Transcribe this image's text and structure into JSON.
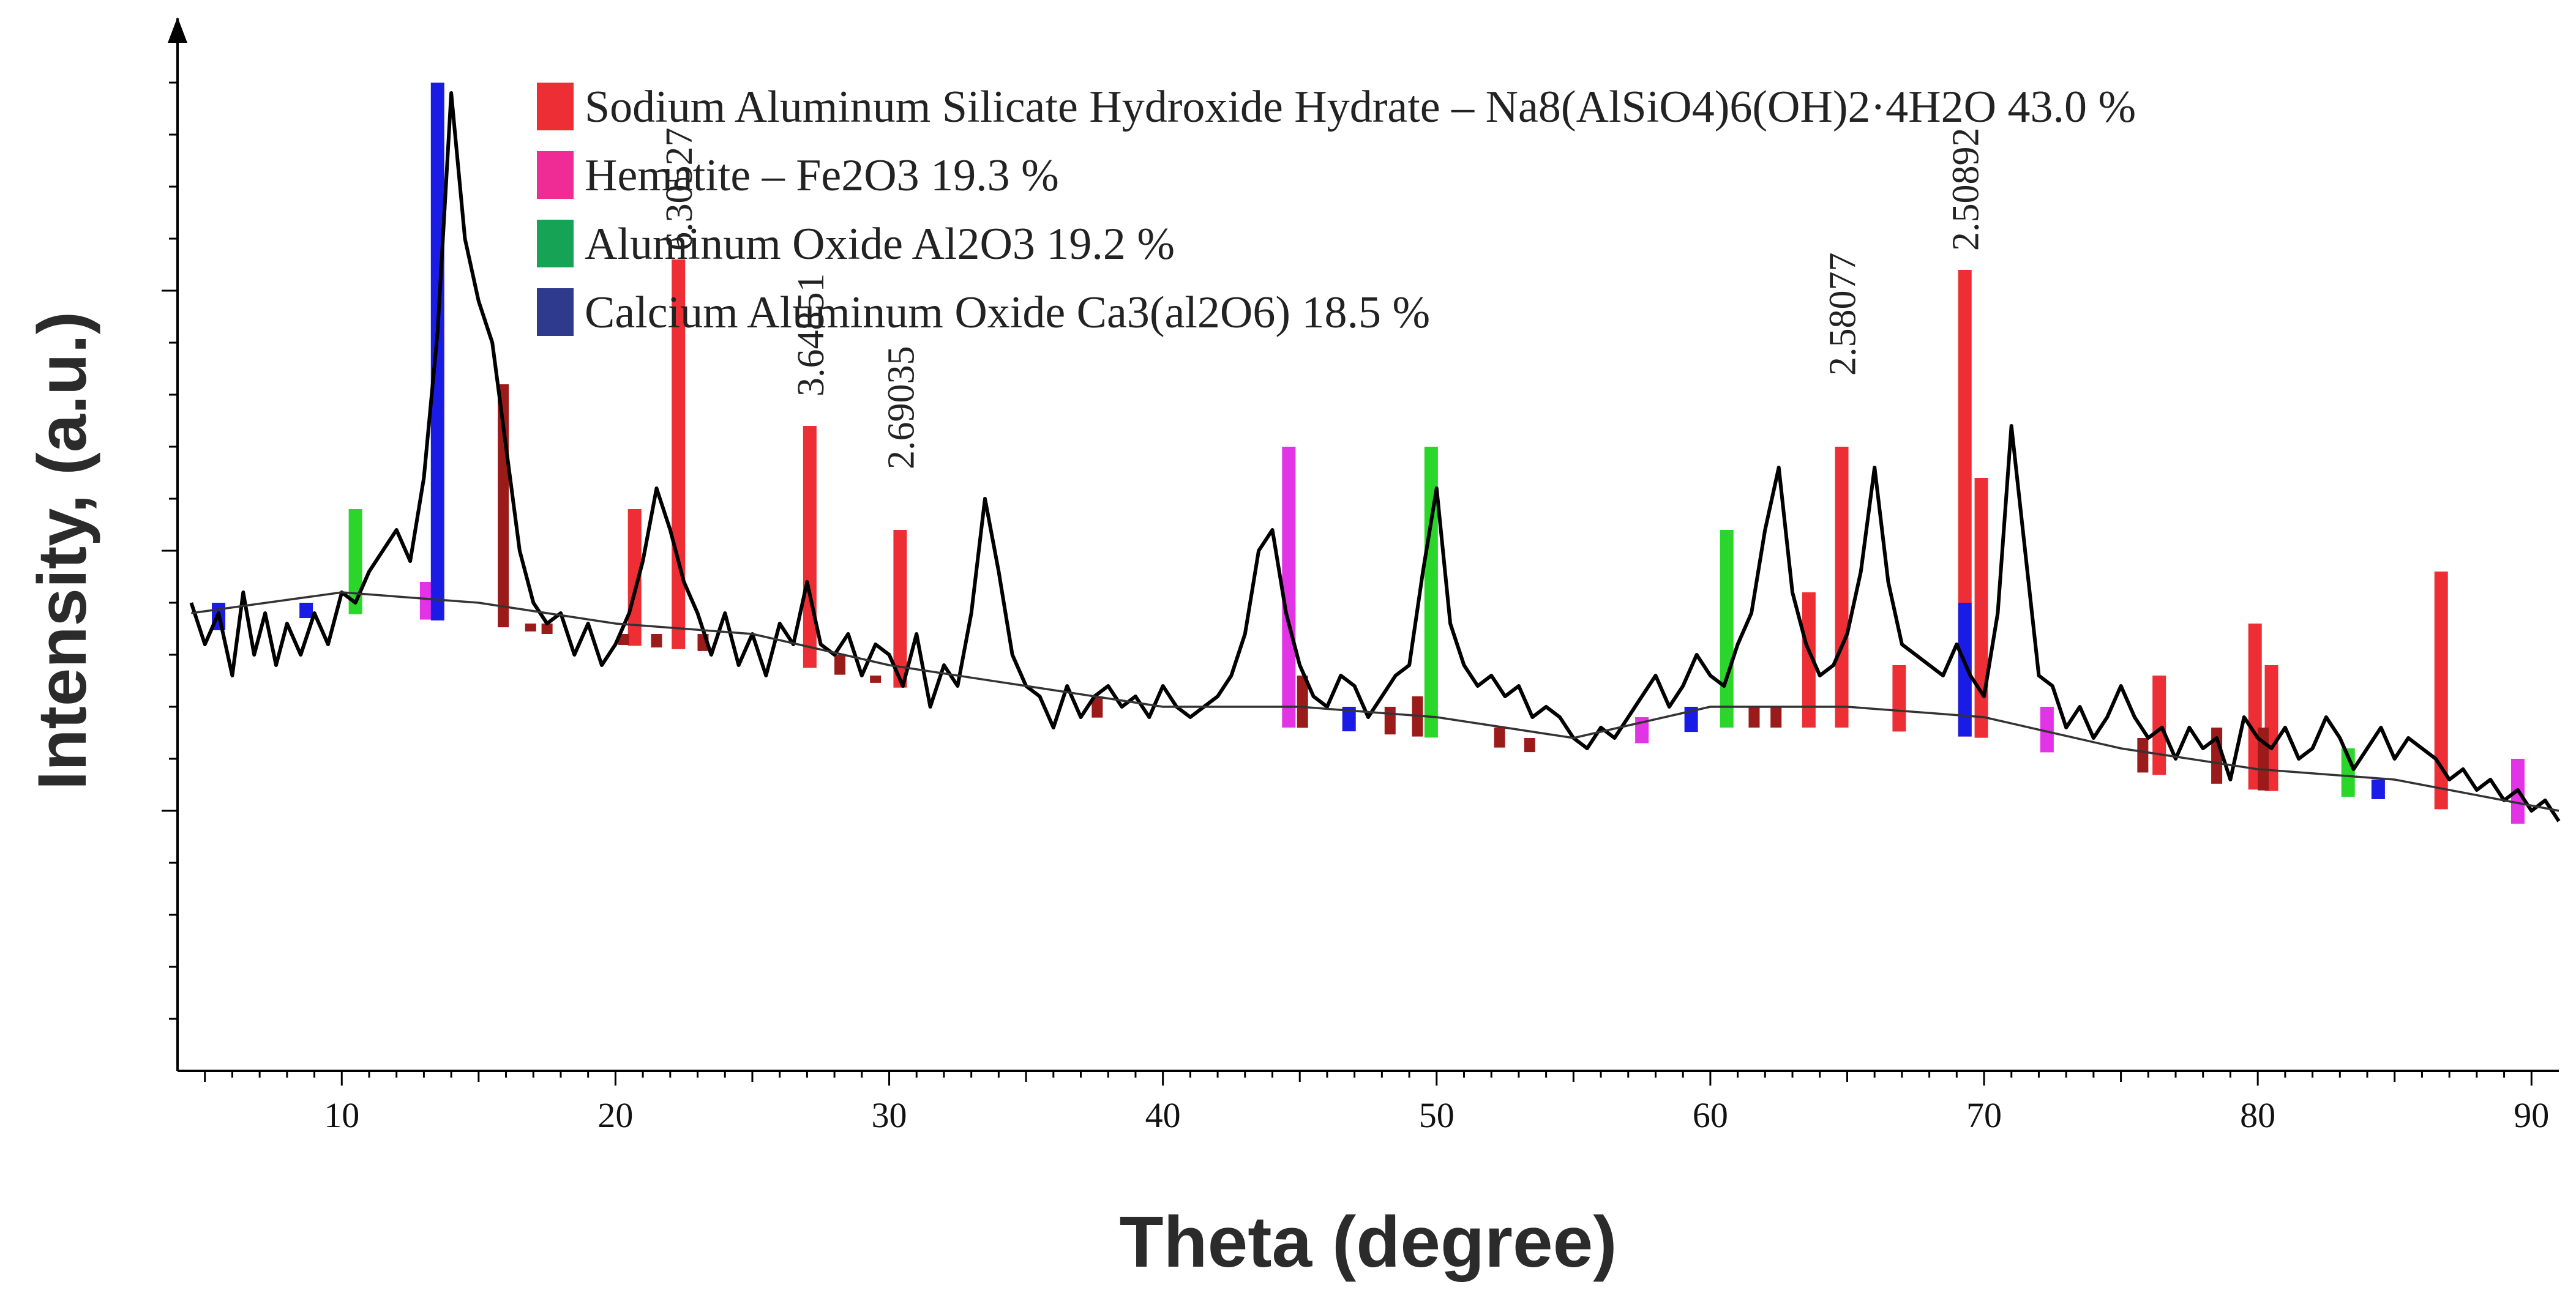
{
  "chart_data": {
    "type": "line",
    "title": "",
    "xlabel": "Theta (degree)",
    "ylabel": "Intensity, (a.u.)",
    "xlim": [
      4,
      91
    ],
    "ylim": [
      0,
      100
    ],
    "x_ticks": [
      10,
      20,
      30,
      40,
      50,
      60,
      70,
      80,
      90
    ],
    "legend_position": "top-right",
    "legend": [
      {
        "label": "Sodium Aluminum Silicate Hydroxide Hydrate – Na8(AlSiO4)6(OH)2·4H2O 43.0 %",
        "color": "#ed2f35"
      },
      {
        "label": "Hematite – Fe2O3 19.3 %",
        "color": "#ef2c95"
      },
      {
        "label": "Aluminum Oxide Al2O3 19.2 %",
        "color": "#17a356"
      },
      {
        "label": "Calcium Aluminum Oxide Ca3(al2O6) 18.5 %",
        "color": "#2e3a8c"
      }
    ],
    "peak_labels": [
      {
        "x": 22.3,
        "y": 78,
        "text": "6.30527"
      },
      {
        "x": 27.1,
        "y": 64,
        "text": "3.64851"
      },
      {
        "x": 30.4,
        "y": 57,
        "text": "2.69035"
      },
      {
        "x": 64.8,
        "y": 66,
        "text": "2.58077"
      },
      {
        "x": 69.3,
        "y": 78,
        "text": "2.50892"
      }
    ],
    "series": [
      {
        "name": "Diffraction pattern",
        "color": "#000000",
        "x": [
          4.5,
          5,
          5.5,
          6,
          6.4,
          6.8,
          7.2,
          7.6,
          8,
          8.5,
          9,
          9.5,
          10,
          10.5,
          11,
          11.5,
          12,
          12.5,
          13,
          13.5,
          14,
          14.5,
          15,
          15.5,
          16,
          16.5,
          17,
          17.5,
          18,
          18.5,
          19,
          19.5,
          20,
          20.5,
          21,
          21.5,
          22,
          22.5,
          23,
          23.5,
          24,
          24.5,
          25,
          25.5,
          26,
          26.5,
          27,
          27.5,
          28,
          28.5,
          29,
          29.5,
          30,
          30.5,
          31,
          31.5,
          32,
          32.5,
          33,
          33.5,
          34,
          34.5,
          35,
          35.5,
          36,
          36.5,
          37,
          37.5,
          38,
          38.5,
          39,
          39.5,
          40,
          40.5,
          41,
          41.5,
          42,
          42.5,
          43,
          43.5,
          44,
          44.5,
          45,
          45.5,
          46,
          46.5,
          47,
          47.5,
          48,
          48.5,
          49,
          49.5,
          50,
          50.5,
          51,
          51.5,
          52,
          52.5,
          53,
          53.5,
          54,
          54.5,
          55,
          55.5,
          56,
          56.5,
          57,
          57.5,
          58,
          58.5,
          59,
          59.5,
          60,
          60.5,
          61,
          61.5,
          62,
          62.5,
          63,
          63.5,
          64,
          64.5,
          65,
          65.5,
          66,
          66.5,
          67,
          67.5,
          68,
          68.5,
          69,
          69.5,
          70,
          70.5,
          71,
          71.5,
          72,
          72.5,
          73,
          73.5,
          74,
          74.5,
          75,
          75.5,
          76,
          76.5,
          77,
          77.5,
          78,
          78.5,
          79,
          79.5,
          80,
          80.5,
          81,
          81.5,
          82,
          82.5,
          83,
          83.5,
          84,
          84.5,
          85,
          85.5,
          86,
          86.5,
          87,
          87.5,
          88,
          88.5,
          89,
          89.5,
          90,
          90.5,
          91
        ],
        "y": [
          45,
          41,
          44,
          38,
          46,
          40,
          44,
          39,
          43,
          40,
          44,
          41,
          46,
          45,
          48,
          50,
          52,
          49,
          57,
          71,
          94,
          80,
          74,
          70,
          60,
          50,
          45,
          43,
          44,
          40,
          43,
          39,
          41,
          44,
          49,
          56,
          52,
          47,
          44,
          40,
          44,
          39,
          42,
          38,
          43,
          41,
          47,
          41,
          40,
          42,
          38,
          41,
          40,
          37,
          42,
          35,
          39,
          37,
          44,
          55,
          48,
          40,
          37,
          36,
          33,
          37,
          34,
          36,
          37,
          35,
          36,
          34,
          37,
          35,
          34,
          35,
          36,
          38,
          42,
          50,
          52,
          44,
          39,
          36,
          35,
          38,
          37,
          34,
          36,
          38,
          39,
          48,
          56,
          43,
          39,
          37,
          38,
          36,
          37,
          34,
          35,
          34,
          32,
          31,
          33,
          32,
          34,
          36,
          38,
          35,
          37,
          40,
          38,
          37,
          41,
          44,
          52,
          58,
          46,
          41,
          38,
          39,
          42,
          48,
          58,
          47,
          41,
          40,
          39,
          38,
          41,
          38,
          36,
          44,
          62,
          50,
          38,
          37,
          33,
          35,
          32,
          34,
          37,
          34,
          32,
          33,
          30,
          33,
          31,
          32,
          28,
          34,
          32,
          31,
          33,
          30,
          31,
          34,
          32,
          29,
          31,
          33,
          30,
          32,
          31,
          30,
          28,
          29,
          27,
          28,
          26,
          27,
          25,
          26,
          24
        ]
      },
      {
        "name": "Background",
        "color": "#333333",
        "x": [
          4.5,
          10,
          15,
          20,
          25,
          30,
          35,
          40,
          45,
          50,
          55,
          60,
          65,
          70,
          75,
          80,
          85,
          91
        ],
        "y": [
          44,
          46,
          45,
          43,
          42,
          39,
          37,
          35,
          35,
          34,
          32,
          35,
          35,
          34,
          31,
          29,
          28,
          25
        ]
      }
    ],
    "phase_markers": [
      {
        "phase": "Sodium Aluminum Silicate Hydroxide Hydrate",
        "color": "#ed2f35",
        "x": [
          20.7,
          22.3,
          27.1,
          30.4,
          63.6,
          64.8,
          66.9,
          69.3,
          69.9,
          76.4,
          79.9,
          80.5,
          86.7
        ],
        "y": [
          54,
          78,
          62,
          52,
          46,
          60,
          39,
          77,
          57,
          38,
          43,
          39,
          48
        ]
      },
      {
        "phase": "Sodium Aluminum Silicate Hydroxide Hydrate (minor)",
        "color": "#9b1b1b",
        "x": [
          15.9,
          16.9,
          17.5,
          20.3,
          21.5,
          23.2,
          28.2,
          29.5,
          37.6,
          45.1,
          48.3,
          49.3,
          52.3,
          53.4,
          61.6,
          62.4,
          75.8,
          78.5,
          80.2
        ],
        "y": [
          66,
          43,
          43,
          42,
          42,
          42,
          40,
          38,
          36,
          38,
          35,
          36,
          33,
          32,
          35,
          35,
          32,
          33,
          33
        ]
      },
      {
        "phase": "Hematite",
        "color": "#e233e6",
        "x": [
          13.1,
          44.6,
          57.5,
          72.3,
          89.5
        ],
        "y": [
          47,
          60,
          34,
          35,
          30
        ]
      },
      {
        "phase": "Aluminum Oxide",
        "color": "#2bd62b",
        "x": [
          10.5,
          49.8,
          60.6,
          83.3
        ],
        "y": [
          54,
          60,
          52,
          31
        ]
      },
      {
        "phase": "Calcium Aluminum Oxide",
        "color": "#1b1be6",
        "x": [
          5.5,
          8.7,
          13.5,
          46.8,
          59.3,
          69.3,
          84.4
        ],
        "y": [
          45,
          45,
          95,
          35,
          35,
          45,
          28
        ]
      }
    ]
  }
}
